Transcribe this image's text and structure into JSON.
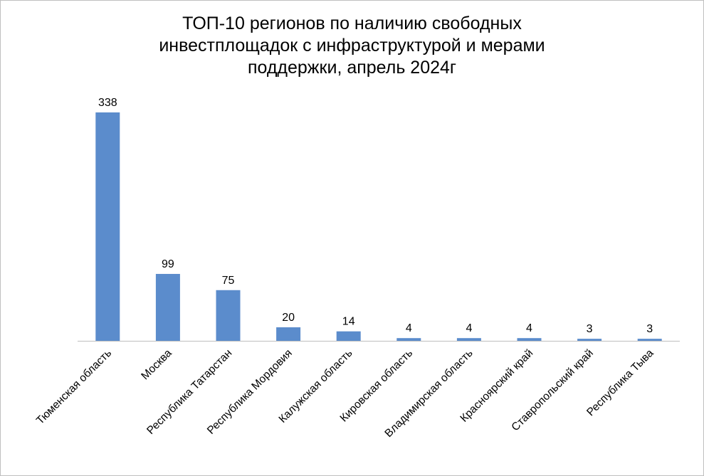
{
  "chart_data": {
    "type": "bar",
    "title_lines": [
      "ТОП-10 регионов по наличию свободных",
      "инвестплощадок с инфраструктурой  и мерами",
      "поддержки, апрель 2024г"
    ],
    "categories": [
      "Тюменская область",
      "Москва",
      "Республика Татарстан",
      "Республика Мордовия",
      "Калужская область",
      "Кировская область",
      "Владимирская область",
      "Красноярский край",
      "Ставропольский край",
      "Республика Тыва"
    ],
    "values": [
      338,
      99,
      75,
      20,
      14,
      4,
      4,
      4,
      3,
      3
    ],
    "bar_color": "#5b8ccc",
    "axis_color": "#bfbfbf",
    "data_labels": true,
    "grid": false,
    "legend": "none"
  }
}
